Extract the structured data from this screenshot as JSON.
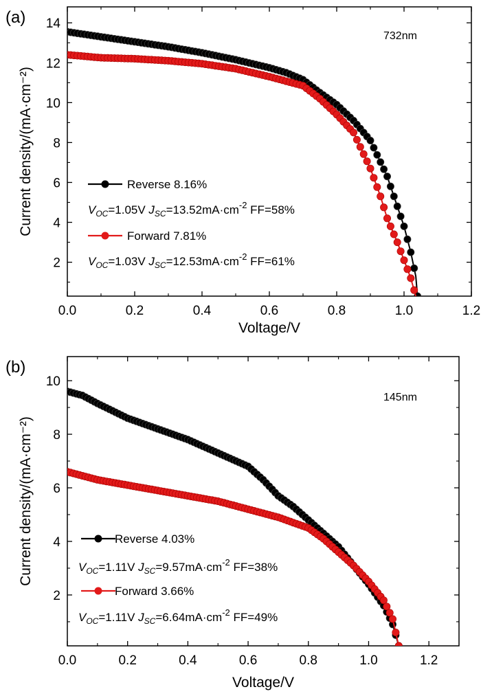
{
  "chart_data": [
    {
      "type": "line",
      "panel_label": "(a)",
      "annotation": "732nm",
      "xlabel": "Voltage/V",
      "ylabel": "Current density/(mA·cm⁻²)",
      "xlim": [
        0.0,
        1.2
      ],
      "ylim": [
        0.3,
        14.8
      ],
      "xticks": [
        "0.0",
        "0.2",
        "0.4",
        "0.6",
        "0.8",
        "1.0",
        "1.2"
      ],
      "yticks": [
        "2",
        "4",
        "6",
        "8",
        "10",
        "12",
        "14"
      ],
      "grid": false,
      "legend_position": "left",
      "series": [
        {
          "name": "Reverse 8.16%",
          "color": "#000000",
          "marker": "circle",
          "points": [
            [
              0.0,
              13.55
            ],
            [
              0.1,
              13.3
            ],
            [
              0.2,
              13.05
            ],
            [
              0.3,
              12.8
            ],
            [
              0.4,
              12.5
            ],
            [
              0.5,
              12.15
            ],
            [
              0.6,
              11.75
            ],
            [
              0.65,
              11.5
            ],
            [
              0.7,
              11.15
            ],
            [
              0.75,
              10.5
            ],
            [
              0.8,
              9.9
            ],
            [
              0.85,
              9.1
            ],
            [
              0.9,
              8.1
            ],
            [
              0.95,
              6.3
            ],
            [
              0.98,
              4.8
            ],
            [
              1.0,
              3.8
            ],
            [
              1.02,
              2.5
            ],
            [
              1.035,
              1.3
            ],
            [
              1.04,
              0.3
            ]
          ],
          "params": {
            "voc": "1.05V",
            "jsc": "13.52mA·cm",
            "jsc_exp": "-2",
            "ff": "FF=58%"
          }
        },
        {
          "name": "Forward 7.81%",
          "color": "#e21a1a",
          "marker": "circle",
          "points": [
            [
              0.0,
              12.4
            ],
            [
              0.1,
              12.25
            ],
            [
              0.2,
              12.2
            ],
            [
              0.3,
              12.1
            ],
            [
              0.4,
              11.95
            ],
            [
              0.5,
              11.7
            ],
            [
              0.6,
              11.3
            ],
            [
              0.7,
              10.85
            ],
            [
              0.75,
              10.2
            ],
            [
              0.8,
              9.4
            ],
            [
              0.85,
              8.5
            ],
            [
              0.9,
              6.7
            ],
            [
              0.93,
              5.3
            ],
            [
              0.95,
              4.2
            ],
            [
              0.98,
              3.0
            ],
            [
              1.0,
              2.1
            ],
            [
              1.02,
              1.2
            ],
            [
              1.035,
              0.3
            ]
          ],
          "params": {
            "voc": "1.03V",
            "jsc": "12.53mA·cm",
            "jsc_exp": "-2",
            "ff": "FF=61%"
          }
        }
      ]
    },
    {
      "type": "line",
      "panel_label": "(b)",
      "annotation": "145nm",
      "xlabel": "Voltage/V",
      "ylabel": "Current density/(mA·cm⁻²)",
      "xlim": [
        0.0,
        1.3
      ],
      "ylim": [
        0.1,
        10.9
      ],
      "xticks": [
        "0.0",
        "0.2",
        "0.4",
        "0.6",
        "0.8",
        "1.0",
        "1.2"
      ],
      "yticks": [
        "2",
        "4",
        "6",
        "8",
        "10"
      ],
      "grid": false,
      "legend_position": "left",
      "series": [
        {
          "name": "Reverse 4.03%",
          "color": "#000000",
          "marker": "circle",
          "points": [
            [
              0.0,
              9.6
            ],
            [
              0.05,
              9.45
            ],
            [
              0.1,
              9.15
            ],
            [
              0.2,
              8.6
            ],
            [
              0.3,
              8.2
            ],
            [
              0.4,
              7.8
            ],
            [
              0.5,
              7.3
            ],
            [
              0.6,
              6.8
            ],
            [
              0.65,
              6.3
            ],
            [
              0.7,
              5.7
            ],
            [
              0.75,
              5.3
            ],
            [
              0.8,
              4.8
            ],
            [
              0.85,
              4.3
            ],
            [
              0.9,
              3.8
            ],
            [
              0.95,
              3.1
            ],
            [
              1.0,
              2.4
            ],
            [
              1.05,
              1.6
            ],
            [
              1.08,
              0.9
            ],
            [
              1.1,
              0.1
            ]
          ],
          "params": {
            "voc": "1.11V",
            "jsc": "9.57mA·cm",
            "jsc_exp": "-2",
            "ff": "FF=38%"
          }
        },
        {
          "name": "Forward 3.66%",
          "color": "#e21a1a",
          "marker": "circle",
          "points": [
            [
              0.0,
              6.6
            ],
            [
              0.1,
              6.3
            ],
            [
              0.2,
              6.1
            ],
            [
              0.3,
              5.9
            ],
            [
              0.4,
              5.7
            ],
            [
              0.5,
              5.5
            ],
            [
              0.6,
              5.2
            ],
            [
              0.7,
              4.9
            ],
            [
              0.8,
              4.5
            ],
            [
              0.85,
              4.1
            ],
            [
              0.9,
              3.6
            ],
            [
              0.95,
              3.1
            ],
            [
              1.0,
              2.5
            ],
            [
              1.05,
              1.8
            ],
            [
              1.08,
              1.1
            ],
            [
              1.1,
              0.1
            ]
          ],
          "params": {
            "voc": "1.11V",
            "jsc": "6.64mA·cm",
            "jsc_exp": "-2",
            "ff": "FF=49%"
          }
        }
      ]
    }
  ]
}
